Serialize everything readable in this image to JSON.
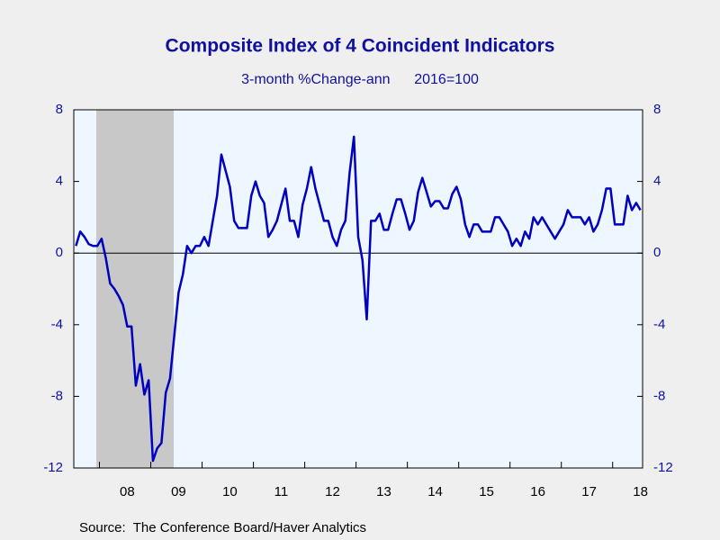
{
  "chart_data": {
    "type": "line",
    "title": "Composite Index of 4 Coincident Indicators",
    "subtitle": "3-month %Change-ann      2016=100",
    "source": "Source:  The Conference Board/Haver Analytics",
    "categories": [
      null,
      null,
      null,
      null,
      null,
      null,
      null,
      null,
      null,
      null,
      null,
      null,
      "08",
      null,
      null,
      null,
      null,
      null,
      null,
      null,
      null,
      null,
      null,
      null,
      "09",
      null,
      null,
      null,
      null,
      null,
      null,
      null,
      null,
      null,
      null,
      null,
      "10",
      null,
      null,
      null,
      null,
      null,
      null,
      null,
      null,
      null,
      null,
      null,
      "11",
      null,
      null,
      null,
      null,
      null,
      null,
      null,
      null,
      null,
      null,
      null,
      "12",
      null,
      null,
      null,
      null,
      null,
      null,
      null,
      null,
      null,
      null,
      null,
      "13",
      null,
      null,
      null,
      null,
      null,
      null,
      null,
      null,
      null,
      null,
      null,
      "14",
      null,
      null,
      null,
      null,
      null,
      null,
      null,
      null,
      null,
      null,
      null,
      "15",
      null,
      null,
      null,
      null,
      null,
      null,
      null,
      null,
      null,
      null,
      null,
      "16",
      null,
      null,
      null,
      null,
      null,
      null,
      null,
      null,
      null,
      null,
      null,
      "17",
      null,
      null,
      null,
      null,
      null,
      null,
      null,
      null,
      null,
      null,
      null,
      "18"
    ],
    "series": [
      {
        "name": "Composite Index",
        "color": "#0000c0",
        "values": [
          0.4,
          1.2,
          0.9,
          0.5,
          0.4,
          0.4,
          0.8,
          -0.3,
          -1.7,
          -2.0,
          -2.4,
          -2.9,
          -4.1,
          -4.1,
          -7.4,
          -6.2,
          -7.9,
          -7.1,
          -11.6,
          -10.9,
          -10.6,
          -7.8,
          -7.0,
          -4.6,
          -2.2,
          -1.2,
          0.4,
          0.0,
          0.4,
          0.4,
          0.9,
          0.4,
          1.8,
          3.2,
          5.5,
          4.6,
          3.7,
          1.8,
          1.4,
          1.4,
          1.4,
          3.2,
          4.0,
          3.2,
          2.8,
          0.9,
          1.3,
          1.8,
          2.7,
          3.6,
          1.8,
          1.8,
          0.9,
          2.7,
          3.6,
          4.8,
          3.6,
          2.7,
          1.8,
          1.8,
          0.9,
          0.4,
          1.3,
          1.8,
          4.5,
          6.5,
          0.9,
          -0.4,
          -3.7,
          1.8,
          1.8,
          2.2,
          1.3,
          1.3,
          2.2,
          3.0,
          3.0,
          2.2,
          1.3,
          1.8,
          3.4,
          4.2,
          3.4,
          2.6,
          2.9,
          2.9,
          2.5,
          2.5,
          3.3,
          3.7,
          3.0,
          1.6,
          0.9,
          1.6,
          1.6,
          1.2,
          1.2,
          1.2,
          2.0,
          2.0,
          1.6,
          1.2,
          0.4,
          0.8,
          0.4,
          1.2,
          0.8,
          2.0,
          1.6,
          2.0,
          1.6,
          1.2,
          0.8,
          1.2,
          1.6,
          2.4,
          2.0,
          2.0,
          2.0,
          1.6,
          2.0,
          1.2,
          1.6,
          2.4,
          3.6,
          3.6,
          1.6,
          1.6,
          1.6,
          3.2,
          2.4,
          2.8,
          2.4
        ]
      }
    ],
    "ylim": [
      -12,
      8
    ],
    "yticks": [
      -12,
      -8,
      -4,
      0,
      4,
      8
    ],
    "y2lim": [
      -12,
      8
    ],
    "y2ticks": [
      -12,
      -8,
      -4,
      0,
      4,
      8
    ]
  }
}
